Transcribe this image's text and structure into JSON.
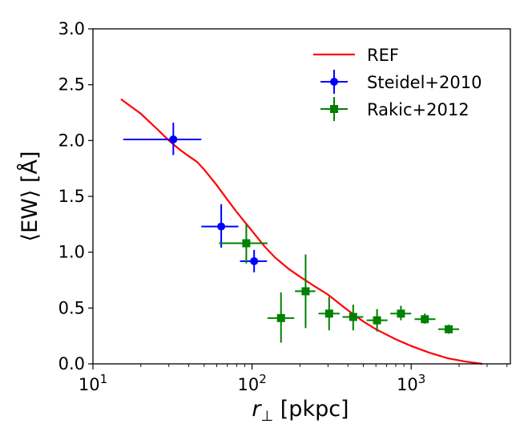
{
  "chart_data": {
    "type": "scatter",
    "title": "",
    "xlabel": "r⊥ [pkpc]",
    "ylabel": "⟨EW⟩ [Å]",
    "xscale": "log",
    "xlim": [
      10,
      4200
    ],
    "ylim": [
      0.0,
      3.0
    ],
    "grid": false,
    "legend": "top-right",
    "x_ticks": [
      {
        "value": 10,
        "base": "10",
        "exp": "1"
      },
      {
        "value": 100,
        "base": "10",
        "exp": "2"
      },
      {
        "value": 1000,
        "base": "10",
        "exp": "3"
      }
    ],
    "y_ticks": [
      "0.0",
      "0.5",
      "1.0",
      "1.5",
      "2.0",
      "2.5",
      "3.0"
    ],
    "series": [
      {
        "name": "REF",
        "kind": "line",
        "color": "#ff0000",
        "points": [
          [
            15,
            2.37
          ],
          [
            20,
            2.24
          ],
          [
            25,
            2.11
          ],
          [
            30,
            2.0
          ],
          [
            35,
            1.92
          ],
          [
            40,
            1.86
          ],
          [
            45,
            1.81
          ],
          [
            50,
            1.74
          ],
          [
            60,
            1.6
          ],
          [
            70,
            1.47
          ],
          [
            80,
            1.36
          ],
          [
            90,
            1.27
          ],
          [
            100,
            1.19
          ],
          [
            120,
            1.05
          ],
          [
            140,
            0.95
          ],
          [
            170,
            0.85
          ],
          [
            200,
            0.78
          ],
          [
            250,
            0.69
          ],
          [
            300,
            0.62
          ],
          [
            400,
            0.48
          ],
          [
            500,
            0.38
          ],
          [
            600,
            0.31
          ],
          [
            800,
            0.22
          ],
          [
            1000,
            0.16
          ],
          [
            1300,
            0.1
          ],
          [
            1700,
            0.05
          ],
          [
            2200,
            0.02
          ],
          [
            2800,
            0.0
          ]
        ]
      },
      {
        "name": "Steidel+2010",
        "kind": "errorbar",
        "marker": "circle",
        "color": "#0000ff",
        "points": [
          {
            "x": 32,
            "y": 2.01,
            "xlo": 15.5,
            "xhi": 48,
            "ylo": 1.87,
            "yhi": 2.16
          },
          {
            "x": 64,
            "y": 1.23,
            "xlo": 48,
            "xhi": 82,
            "ylo": 1.04,
            "yhi": 1.43
          },
          {
            "x": 103,
            "y": 0.92,
            "xlo": 84,
            "xhi": 124,
            "ylo": 0.82,
            "yhi": 1.02
          }
        ]
      },
      {
        "name": "Rakic+2012",
        "kind": "errorbar",
        "marker": "square",
        "color": "#008000",
        "points": [
          {
            "x": 92,
            "y": 1.08,
            "xlo": 62,
            "xhi": 125,
            "ylo": 0.9,
            "yhi": 1.25
          },
          {
            "x": 152,
            "y": 0.41,
            "xlo": 125,
            "xhi": 184,
            "ylo": 0.19,
            "yhi": 0.64
          },
          {
            "x": 217,
            "y": 0.65,
            "xlo": 186,
            "xhi": 250,
            "ylo": 0.32,
            "yhi": 0.98
          },
          {
            "x": 305,
            "y": 0.45,
            "xlo": 262,
            "xhi": 355,
            "ylo": 0.3,
            "yhi": 0.6
          },
          {
            "x": 432,
            "y": 0.42,
            "xlo": 370,
            "xhi": 500,
            "ylo": 0.3,
            "yhi": 0.53
          },
          {
            "x": 610,
            "y": 0.39,
            "xlo": 525,
            "xhi": 710,
            "ylo": 0.29,
            "yhi": 0.49
          },
          {
            "x": 862,
            "y": 0.45,
            "xlo": 740,
            "xhi": 1000,
            "ylo": 0.39,
            "yhi": 0.52
          },
          {
            "x": 1218,
            "y": 0.4,
            "xlo": 1050,
            "xhi": 1420,
            "ylo": 0.36,
            "yhi": 0.45
          },
          {
            "x": 1720,
            "y": 0.31,
            "xlo": 1480,
            "xhi": 2000,
            "ylo": 0.27,
            "yhi": 0.35
          }
        ]
      }
    ]
  }
}
